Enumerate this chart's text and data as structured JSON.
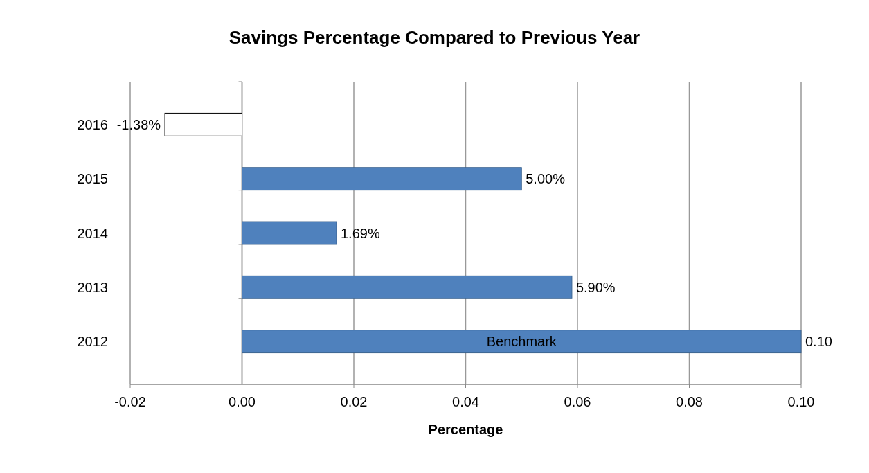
{
  "chart_data": {
    "type": "bar",
    "orientation": "horizontal",
    "title": "Savings Percentage Compared to Previous Year",
    "xlabel": "Percentage",
    "categories": [
      "2016",
      "2015",
      "2014",
      "2013",
      "2012"
    ],
    "values": [
      -0.0138,
      0.05,
      0.0169,
      0.059,
      0.1
    ],
    "colors": [
      "#ffffff",
      "#4f81bd",
      "#4f81bd",
      "#4f81bd",
      "#4f81bd"
    ],
    "value_labels": [
      "-1.38%",
      "5.00%",
      "1.69%",
      "5.90%",
      "0.10"
    ],
    "xlim": [
      -0.02,
      0.1
    ],
    "xticks": [
      {
        "value": -0.02,
        "label": "-0.02"
      },
      {
        "value": 0,
        "label": "0.00"
      },
      {
        "value": 0.02,
        "label": "0.02"
      },
      {
        "value": 0.04,
        "label": "0.04"
      },
      {
        "value": 0.06,
        "label": "0.06"
      },
      {
        "value": 0.08,
        "label": "0.08"
      },
      {
        "value": 0.1,
        "label": "0.10"
      }
    ],
    "grid": "x",
    "annotations": [
      "Benchmark"
    ]
  }
}
